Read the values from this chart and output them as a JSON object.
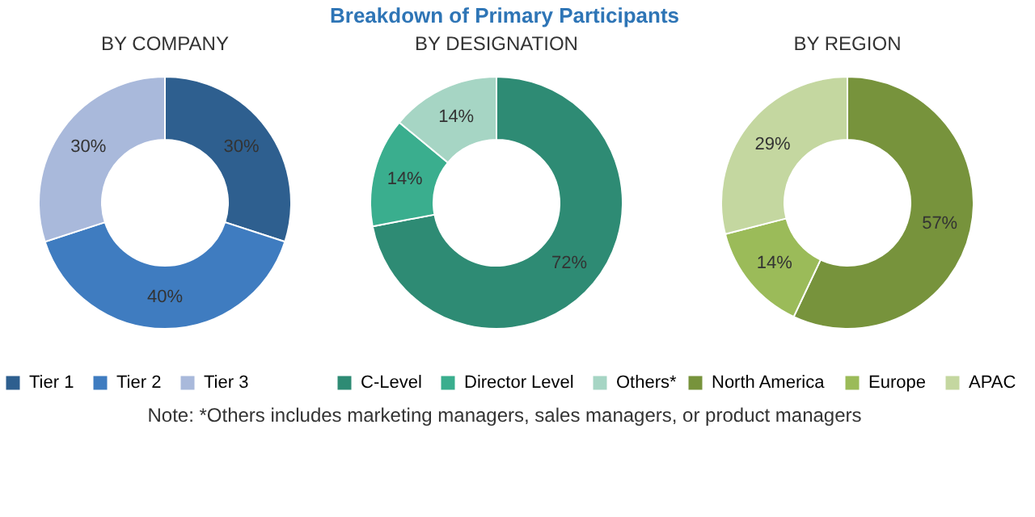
{
  "chart_data": [
    {
      "type": "donut",
      "title": "BY COMPANY",
      "categories": [
        "Tier 1",
        "Tier 2",
        "Tier 3"
      ],
      "values": [
        30,
        40,
        30
      ],
      "colors": [
        "#2e5f8f",
        "#3f7cc0",
        "#a9b9db"
      ],
      "value_labels": [
        "30%",
        "40%",
        "30%"
      ],
      "legend": "bottom"
    },
    {
      "type": "donut",
      "title": "BY DESIGNATION",
      "categories": [
        "C-Level",
        "Director Level",
        "Others*"
      ],
      "values": [
        72,
        14,
        14
      ],
      "colors": [
        "#2e8b74",
        "#3aae8e",
        "#a6d5c4"
      ],
      "value_labels": [
        "72%",
        "14%",
        "14%"
      ],
      "legend": "bottom",
      "annotations": [
        "Breakdown of Primary Participants",
        "Note: *Others includes marketing managers, sales managers, or product managers"
      ]
    },
    {
      "type": "donut",
      "title": "BY REGION",
      "categories": [
        "North America",
        "Europe",
        "APAC"
      ],
      "values": [
        57,
        14,
        29
      ],
      "colors": [
        "#77933c",
        "#9bbb59",
        "#c4d7a0"
      ],
      "value_labels": [
        "57%",
        "14%",
        "29%"
      ],
      "legend": "bottom"
    }
  ]
}
